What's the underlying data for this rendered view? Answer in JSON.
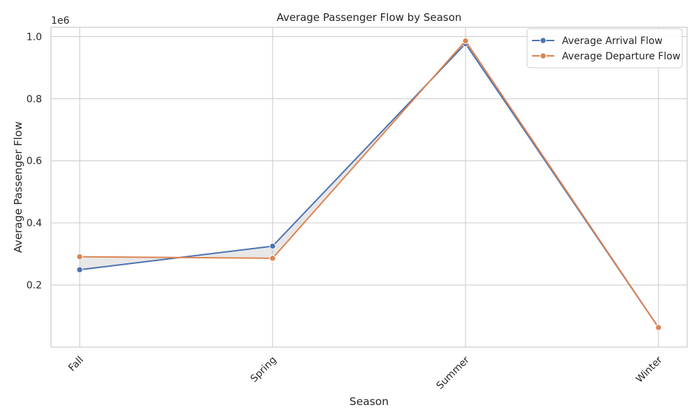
{
  "chart_data": {
    "type": "line",
    "title": "Average Passenger Flow by Season",
    "xlabel": "Season",
    "ylabel": "Average Passenger Flow",
    "y_offset_label": "1e6",
    "categories": [
      "Fall",
      "Spring",
      "Summer",
      "Winter"
    ],
    "series": [
      {
        "name": "Average Arrival Flow",
        "color": "#4c72b0",
        "values": [
          249000,
          325000,
          977000,
          63000
        ]
      },
      {
        "name": "Average Departure Flow",
        "color": "#dd8452",
        "values": [
          291000,
          286000,
          986000,
          63000
        ]
      }
    ],
    "ylim": [
      0.0,
      1.03
    ],
    "yticks": [
      0.2,
      0.4,
      0.6,
      0.8,
      1.0
    ],
    "ytick_labels": [
      "0.2",
      "0.4",
      "0.6",
      "0.8",
      "1.0"
    ],
    "y_scale_factor": 1000000,
    "fill_between": true,
    "fill_color": "#b0b0b0",
    "grid": true,
    "legend_position": "top-right",
    "tick_label_rotation": -45
  }
}
